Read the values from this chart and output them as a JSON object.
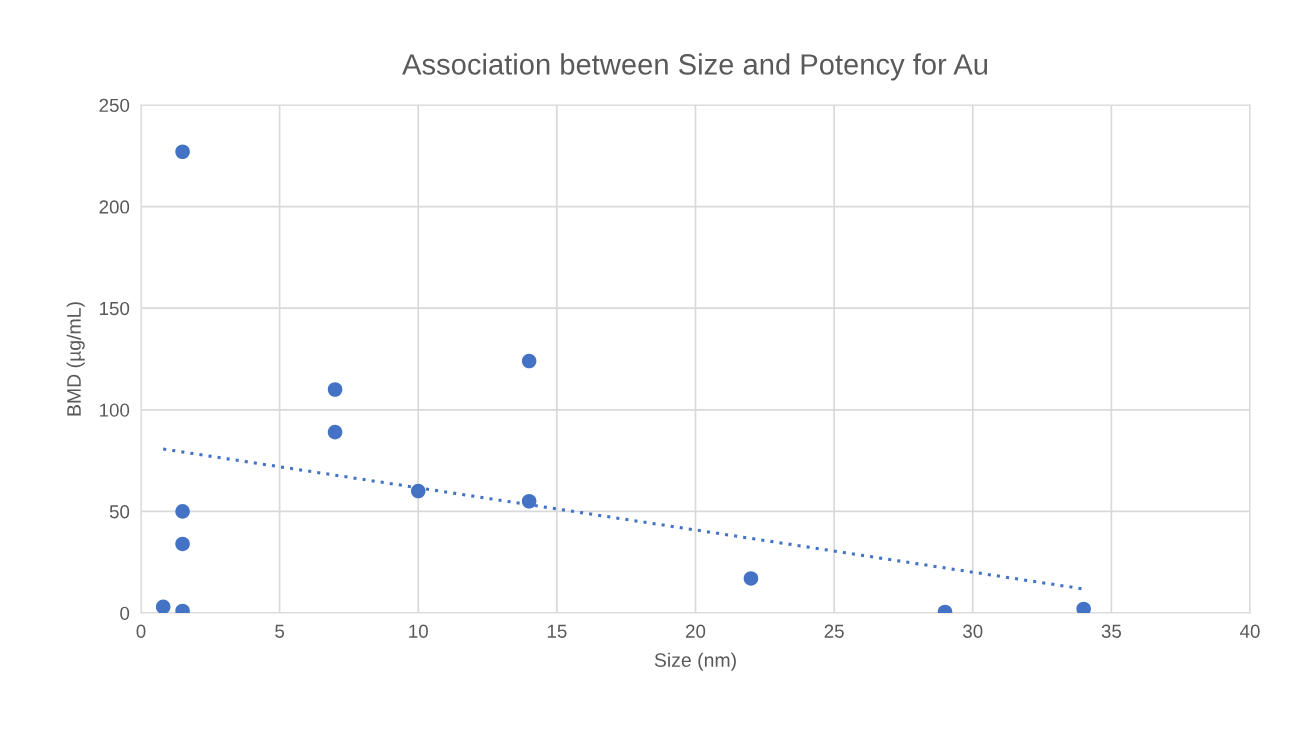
{
  "chart_data": {
    "type": "scatter",
    "title": "Association between Size and Potency for Au",
    "xlabel": "Size (nm)",
    "ylabel": "BMD (µg/mL)",
    "xlim": [
      0,
      40
    ],
    "xticks": [
      0,
      5,
      10,
      15,
      20,
      25,
      30,
      35,
      40
    ],
    "ylim": [
      0,
      250
    ],
    "yticks": [
      0,
      50,
      100,
      150,
      200,
      250
    ],
    "grid": true,
    "marker": "circle",
    "series": [
      {
        "color": "#4472c4",
        "x": [
          1.5,
          1.5,
          1.5,
          1.5,
          0.8,
          7,
          7,
          10,
          14,
          14,
          22,
          29,
          34
        ],
        "values": [
          227,
          50,
          34,
          1,
          3,
          110,
          89,
          60,
          124,
          55,
          17,
          0.5,
          2
        ]
      },
      {
        "type": "line",
        "color": "#4472c4",
        "line_style": "dotted",
        "marker": "none",
        "x": [
          0.8,
          34
        ],
        "values": [
          80.7,
          11.8
        ]
      }
    ]
  }
}
